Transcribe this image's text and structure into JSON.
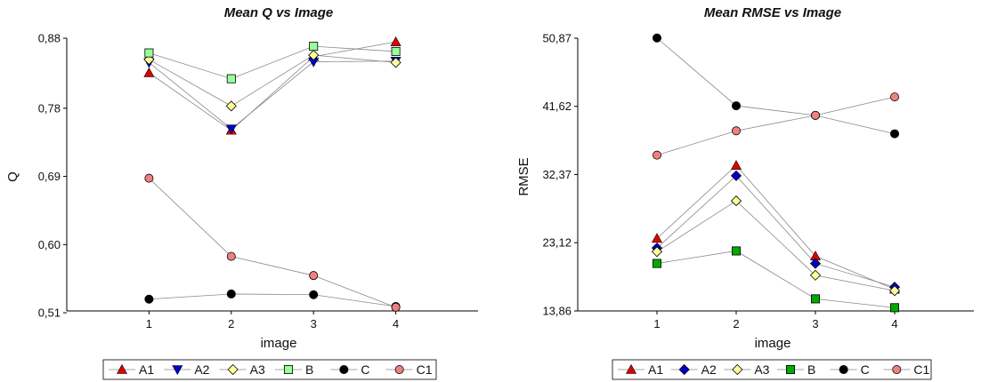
{
  "chart_data": [
    {
      "type": "line",
      "title": "Mean Q vs Image",
      "xlabel": "image",
      "ylabel": "Q",
      "x": [
        1,
        2,
        3,
        4
      ],
      "xticks": [
        "1",
        "2",
        "3",
        "4"
      ],
      "xlim": [
        0,
        5
      ],
      "ylim": [
        0.51,
        0.88
      ],
      "yticks": [
        "0,88",
        "0,78",
        "0,69",
        "0,60",
        "0,51"
      ],
      "ytick_values": [
        0.88,
        0.785,
        0.6925,
        0.6,
        0.5075
      ],
      "grid": false,
      "legend_position": "bottom",
      "series": [
        {
          "name": "A1",
          "values": [
            0.833,
            0.755,
            0.855,
            0.875
          ],
          "color": "#e00000",
          "marker": "triangle-up"
        },
        {
          "name": "A2",
          "values": [
            0.847,
            0.757,
            0.848,
            0.849
          ],
          "color": "#0000cc",
          "marker": "triangle-down"
        },
        {
          "name": "A3",
          "values": [
            0.851,
            0.788,
            0.857,
            0.847
          ],
          "color": "#ffff99",
          "marker": "diamond"
        },
        {
          "name": "B",
          "values": [
            0.86,
            0.825,
            0.869,
            0.862
          ],
          "color": "#99ff99",
          "marker": "square"
        },
        {
          "name": "C",
          "values": [
            0.526,
            0.533,
            0.532,
            0.516
          ],
          "color": "#000000",
          "marker": "circle"
        },
        {
          "name": "C1",
          "values": [
            0.69,
            0.584,
            0.558,
            0.515
          ],
          "color": "#f08080",
          "marker": "circle"
        }
      ]
    },
    {
      "type": "line",
      "title": "Mean RMSE vs Image",
      "xlabel": "image",
      "ylabel": "RMSE",
      "x": [
        1,
        2,
        3,
        4
      ],
      "xticks": [
        "1",
        "2",
        "3",
        "4"
      ],
      "xlim": [
        0,
        5
      ],
      "ylim": [
        13.86,
        50.87
      ],
      "yticks": [
        "50,87",
        "41,62",
        "32,37",
        "23,12",
        "13,86"
      ],
      "ytick_values": [
        50.87,
        41.62,
        32.37,
        23.12,
        13.86
      ],
      "grid": false,
      "legend_position": "bottom",
      "series": [
        {
          "name": "A1",
          "values": [
            23.7,
            33.6,
            21.3,
            16.8
          ],
          "color": "#e00000",
          "marker": "triangle-up"
        },
        {
          "name": "A2",
          "values": [
            22.4,
            32.2,
            20.3,
            17.1
          ],
          "color": "#0000cc",
          "marker": "diamond"
        },
        {
          "name": "A3",
          "values": [
            21.9,
            28.8,
            18.7,
            16.6
          ],
          "color": "#ffff99",
          "marker": "diamond"
        },
        {
          "name": "B",
          "values": [
            20.3,
            22.0,
            15.5,
            14.3
          ],
          "color": "#00aa00",
          "marker": "square"
        },
        {
          "name": "C",
          "values": [
            50.9,
            41.7,
            40.4,
            37.9
          ],
          "color": "#000000",
          "marker": "circle"
        },
        {
          "name": "C1",
          "values": [
            35.0,
            38.3,
            40.4,
            42.9
          ],
          "color": "#f08080",
          "marker": "circle"
        }
      ]
    }
  ]
}
